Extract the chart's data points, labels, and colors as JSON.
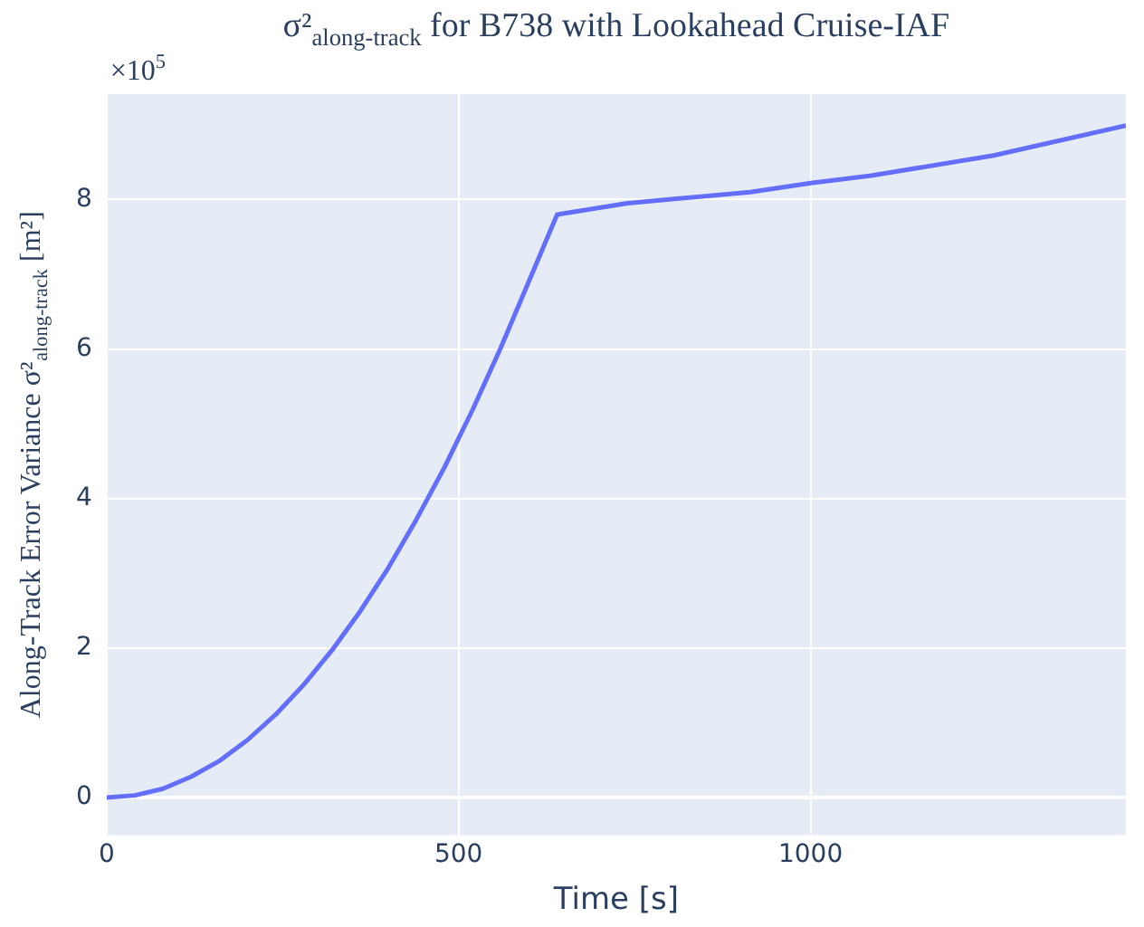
{
  "chart_data": {
    "type": "line",
    "title": "σ²$_{along-track}$ for B738 with Lookahead Cruise-IAF",
    "xlabel": "Time [s]",
    "ylabel": "Along-Track Error Variance σ²$_{along-track}$ [m²]",
    "annotations": [
      "×10$^{5}$"
    ],
    "x": [
      0,
      40,
      80,
      120,
      160,
      200,
      240,
      280,
      320,
      360,
      400,
      440,
      480,
      520,
      560,
      600,
      640,
      740,
      914,
      1000,
      1086,
      1260,
      1448
    ],
    "series": [
      {
        "color": "#636efa",
        "values": [
          0,
          0.03,
          0.12,
          0.28,
          0.49,
          0.77,
          1.11,
          1.51,
          1.97,
          2.49,
          3.07,
          3.72,
          4.42,
          5.19,
          6.02,
          6.91,
          7.8,
          7.95,
          8.1,
          8.22,
          8.32,
          8.59,
          8.99
        ]
      }
    ],
    "xlim": [
      0,
      1448
    ],
    "xticks": [
      0,
      500,
      1000
    ],
    "ylim": [
      -0.5,
      9.41
    ],
    "yticks": [
      0,
      2,
      4,
      6,
      8
    ],
    "grid": true,
    "legend": false,
    "marker": "none",
    "line_style": "solid"
  }
}
